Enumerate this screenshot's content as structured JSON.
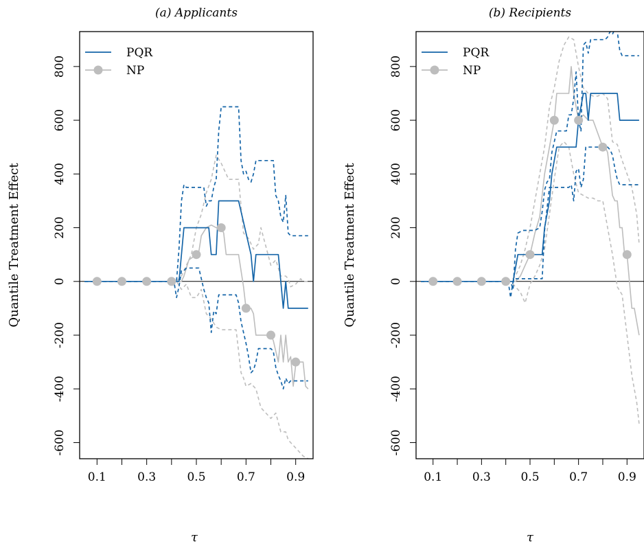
{
  "colors": {
    "pqr": "#1565a8",
    "np": "#bdbdbd",
    "frame": "#000000"
  },
  "chart_data": [
    {
      "type": "line",
      "title": "(a) Applicants",
      "xlabel": "τ",
      "ylabel": "Quantile Treatment Effect",
      "xlim": [
        0.03,
        0.97
      ],
      "ylim": [
        -660,
        930
      ],
      "xticks": [
        0.1,
        0.2,
        0.3,
        0.4,
        0.5,
        0.6,
        0.7,
        0.8,
        0.9
      ],
      "xtick_labels": [
        "0.1",
        "",
        "0.3",
        "",
        "0.5",
        "",
        "0.7",
        "",
        "0.9"
      ],
      "yticks": [
        -600,
        -400,
        -200,
        0,
        200,
        400,
        600,
        800
      ],
      "ytick_labels": [
        "-600",
        "-400",
        "-200",
        "0",
        "200",
        "400",
        "600",
        "800"
      ],
      "legend": {
        "position": "top-left",
        "entries": [
          "PQR",
          "NP"
        ]
      },
      "series": [
        {
          "name": "PQR",
          "style": "solid",
          "x": [
            0.05,
            0.43,
            0.44,
            0.45,
            0.5,
            0.51,
            0.55,
            0.56,
            0.58,
            0.59,
            0.66,
            0.67,
            0.72,
            0.73,
            0.74,
            0.75,
            0.82,
            0.83,
            0.84,
            0.85,
            0.86,
            0.87,
            0.95
          ],
          "y": [
            0,
            0,
            100,
            200,
            200,
            200,
            200,
            100,
            100,
            300,
            300,
            300,
            100,
            0,
            100,
            100,
            100,
            100,
            0,
            -100,
            0,
            -100,
            -100
          ]
        },
        {
          "name": "PQR upper",
          "style": "dashed",
          "x": [
            0.05,
            0.42,
            0.43,
            0.44,
            0.45,
            0.46,
            0.47,
            0.49,
            0.5,
            0.51,
            0.53,
            0.54,
            0.55,
            0.56,
            0.57,
            0.58,
            0.59,
            0.6,
            0.61,
            0.67,
            0.68,
            0.69,
            0.7,
            0.71,
            0.72,
            0.73,
            0.74,
            0.8,
            0.81,
            0.82,
            0.83,
            0.84,
            0.85,
            0.86,
            0.87,
            0.88,
            0.95
          ],
          "y": [
            0,
            0,
            120,
            300,
            360,
            350,
            350,
            350,
            350,
            350,
            350,
            280,
            300,
            300,
            350,
            380,
            560,
            650,
            650,
            650,
            450,
            400,
            410,
            380,
            370,
            400,
            450,
            450,
            450,
            320,
            300,
            240,
            220,
            320,
            180,
            170,
            170
          ]
        },
        {
          "name": "PQR lower",
          "style": "dashed",
          "x": [
            0.05,
            0.41,
            0.42,
            0.43,
            0.44,
            0.45,
            0.46,
            0.47,
            0.49,
            0.5,
            0.51,
            0.53,
            0.54,
            0.55,
            0.56,
            0.57,
            0.58,
            0.59,
            0.6,
            0.61,
            0.66,
            0.67,
            0.68,
            0.7,
            0.71,
            0.72,
            0.73,
            0.74,
            0.75,
            0.8,
            0.81,
            0.82,
            0.83,
            0.84,
            0.85,
            0.86,
            0.87,
            0.88,
            0.95
          ],
          "y": [
            0,
            0,
            -60,
            -20,
            40,
            40,
            50,
            50,
            50,
            50,
            50,
            -30,
            -60,
            -80,
            -190,
            -110,
            -120,
            -50,
            -50,
            -50,
            -50,
            -80,
            -150,
            -230,
            -280,
            -340,
            -330,
            -300,
            -250,
            -250,
            -260,
            -320,
            -350,
            -370,
            -400,
            -360,
            -380,
            -370,
            -370
          ]
        },
        {
          "name": "NP",
          "style": "solid",
          "x": [
            0.05,
            0.44,
            0.45,
            0.47,
            0.5,
            0.51,
            0.52,
            0.54,
            0.56,
            0.58,
            0.6,
            0.61,
            0.62,
            0.67,
            0.68,
            0.69,
            0.7,
            0.72,
            0.73,
            0.74,
            0.75,
            0.76,
            0.77,
            0.8,
            0.81,
            0.82,
            0.83,
            0.84,
            0.85,
            0.86,
            0.87,
            0.88,
            0.89,
            0.9,
            0.91,
            0.92,
            0.93,
            0.94,
            0.95
          ],
          "y": [
            0,
            0,
            20,
            80,
            100,
            110,
            170,
            200,
            210,
            200,
            200,
            180,
            100,
            100,
            40,
            -20,
            -100,
            -100,
            -120,
            -200,
            -200,
            -200,
            -200,
            -200,
            -220,
            -260,
            -300,
            -200,
            -300,
            -200,
            -300,
            -280,
            -390,
            -310,
            -300,
            -300,
            -300,
            -390,
            -400
          ]
        },
        {
          "name": "NP upper",
          "style": "dashed",
          "x": [
            0.05,
            0.42,
            0.44,
            0.46,
            0.48,
            0.5,
            0.52,
            0.54,
            0.56,
            0.58,
            0.6,
            0.62,
            0.63,
            0.65,
            0.67,
            0.69,
            0.71,
            0.73,
            0.75,
            0.76,
            0.78,
            0.8,
            0.82,
            0.84,
            0.86,
            0.87,
            0.88,
            0.9,
            0.92,
            0.93,
            0.95
          ],
          "y": [
            0,
            0,
            20,
            60,
            100,
            200,
            250,
            330,
            380,
            470,
            440,
            400,
            380,
            380,
            380,
            180,
            160,
            120,
            140,
            200,
            130,
            60,
            80,
            20,
            20,
            10,
            -20,
            -10,
            10,
            0,
            0
          ]
        },
        {
          "name": "NP lower",
          "style": "dashed",
          "x": [
            0.05,
            0.42,
            0.44,
            0.46,
            0.48,
            0.5,
            0.52,
            0.54,
            0.56,
            0.58,
            0.6,
            0.62,
            0.64,
            0.66,
            0.68,
            0.69,
            0.7,
            0.72,
            0.74,
            0.76,
            0.78,
            0.8,
            0.82,
            0.84,
            0.86,
            0.87,
            0.88,
            0.9,
            0.92,
            0.93,
            0.95
          ],
          "y": [
            0,
            0,
            -30,
            -10,
            -60,
            -60,
            -30,
            -120,
            -140,
            -170,
            -180,
            -180,
            -180,
            -180,
            -340,
            -360,
            -390,
            -380,
            -400,
            -470,
            -490,
            -510,
            -490,
            -560,
            -560,
            -590,
            -600,
            -620,
            -640,
            -650,
            -660
          ]
        }
      ],
      "markers": [
        {
          "series": "PQR",
          "x": [
            0.1,
            0.2,
            0.3,
            0.4
          ],
          "y": [
            0,
            0,
            0,
            0
          ]
        },
        {
          "series": "NP",
          "x": [
            0.5,
            0.6,
            0.7,
            0.8,
            0.9
          ],
          "y": [
            100,
            200,
            -100,
            -200,
            -300
          ]
        }
      ]
    },
    {
      "type": "line",
      "title": "(b) Recipients",
      "xlabel": "τ",
      "ylabel": "Quantile Treatment Effect",
      "xlim": [
        0.03,
        0.97
      ],
      "ylim": [
        -660,
        930
      ],
      "xticks": [
        0.1,
        0.2,
        0.3,
        0.4,
        0.5,
        0.6,
        0.7,
        0.8,
        0.9
      ],
      "xtick_labels": [
        "0.1",
        "",
        "0.3",
        "",
        "0.5",
        "",
        "0.7",
        "",
        "0.9"
      ],
      "yticks": [
        -600,
        -400,
        -200,
        0,
        200,
        400,
        600,
        800
      ],
      "ytick_labels": [
        "-600",
        "-400",
        "-200",
        "0",
        "200",
        "400",
        "600",
        "800"
      ],
      "legend": {
        "position": "top-left",
        "entries": [
          "PQR",
          "NP"
        ]
      },
      "series": [
        {
          "name": "PQR",
          "style": "solid",
          "x": [
            0.05,
            0.43,
            0.44,
            0.45,
            0.55,
            0.56,
            0.58,
            0.59,
            0.6,
            0.61,
            0.69,
            0.7,
            0.72,
            0.73,
            0.74,
            0.75,
            0.86,
            0.87,
            0.95
          ],
          "y": [
            0,
            0,
            50,
            100,
            100,
            200,
            300,
            400,
            450,
            500,
            500,
            600,
            700,
            700,
            600,
            700,
            700,
            600,
            600
          ]
        },
        {
          "name": "PQR upper",
          "style": "dashed",
          "x": [
            0.05,
            0.42,
            0.43,
            0.44,
            0.45,
            0.47,
            0.5,
            0.52,
            0.54,
            0.55,
            0.56,
            0.57,
            0.58,
            0.59,
            0.61,
            0.65,
            0.66,
            0.67,
            0.68,
            0.69,
            0.7,
            0.71,
            0.72,
            0.73,
            0.74,
            0.75,
            0.77,
            0.81,
            0.82,
            0.83,
            0.84,
            0.85,
            0.86,
            0.87,
            0.88,
            0.95
          ],
          "y": [
            0,
            0,
            -30,
            120,
            180,
            190,
            190,
            190,
            200,
            260,
            340,
            370,
            380,
            480,
            560,
            560,
            620,
            620,
            680,
            780,
            600,
            560,
            880,
            890,
            850,
            900,
            900,
            900,
            910,
            930,
            920,
            940,
            930,
            860,
            840,
            840
          ]
        },
        {
          "name": "PQR lower",
          "style": "dashed",
          "x": [
            0.05,
            0.41,
            0.42,
            0.43,
            0.44,
            0.45,
            0.5,
            0.53,
            0.54,
            0.55,
            0.56,
            0.57,
            0.58,
            0.6,
            0.66,
            0.67,
            0.68,
            0.69,
            0.7,
            0.71,
            0.72,
            0.73,
            0.74,
            0.75,
            0.81,
            0.82,
            0.83,
            0.84,
            0.85,
            0.86,
            0.87,
            0.95
          ],
          "y": [
            0,
            0,
            -60,
            0,
            10,
            10,
            10,
            10,
            10,
            10,
            190,
            270,
            350,
            350,
            350,
            360,
            300,
            410,
            420,
            350,
            380,
            500,
            500,
            500,
            500,
            500,
            490,
            470,
            420,
            380,
            360,
            360
          ]
        },
        {
          "name": "NP",
          "style": "solid",
          "x": [
            0.05,
            0.44,
            0.46,
            0.48,
            0.5,
            0.52,
            0.54,
            0.56,
            0.58,
            0.6,
            0.61,
            0.62,
            0.66,
            0.67,
            0.68,
            0.7,
            0.72,
            0.73,
            0.74,
            0.76,
            0.78,
            0.8,
            0.81,
            0.82,
            0.83,
            0.84,
            0.85,
            0.86,
            0.87,
            0.88,
            0.89,
            0.9,
            0.91,
            0.92,
            0.93,
            0.94,
            0.95
          ],
          "y": [
            0,
            0,
            20,
            60,
            100,
            180,
            240,
            400,
            500,
            600,
            700,
            700,
            700,
            800,
            700,
            600,
            620,
            610,
            600,
            600,
            550,
            500,
            500,
            480,
            400,
            320,
            300,
            300,
            200,
            200,
            100,
            100,
            0,
            -100,
            -100,
            -150,
            -200
          ]
        },
        {
          "name": "NP upper",
          "style": "dashed",
          "x": [
            0.05,
            0.42,
            0.44,
            0.46,
            0.48,
            0.5,
            0.52,
            0.54,
            0.56,
            0.58,
            0.6,
            0.62,
            0.64,
            0.66,
            0.68,
            0.7,
            0.72,
            0.74,
            0.76,
            0.78,
            0.8,
            0.82,
            0.84,
            0.86,
            0.88,
            0.9,
            0.92,
            0.94,
            0.95
          ],
          "y": [
            0,
            0,
            20,
            60,
            120,
            200,
            300,
            400,
            500,
            650,
            720,
            820,
            880,
            910,
            900,
            800,
            720,
            700,
            690,
            690,
            700,
            680,
            520,
            510,
            450,
            400,
            350,
            250,
            140
          ]
        },
        {
          "name": "NP lower",
          "style": "dashed",
          "x": [
            0.05,
            0.42,
            0.44,
            0.46,
            0.48,
            0.5,
            0.52,
            0.54,
            0.56,
            0.58,
            0.6,
            0.62,
            0.64,
            0.66,
            0.68,
            0.7,
            0.72,
            0.74,
            0.76,
            0.78,
            0.8,
            0.82,
            0.84,
            0.86,
            0.88,
            0.9,
            0.92,
            0.94,
            0.95
          ],
          "y": [
            0,
            0,
            -20,
            -40,
            -80,
            -10,
            20,
            60,
            120,
            250,
            380,
            500,
            520,
            500,
            400,
            330,
            320,
            310,
            310,
            300,
            300,
            200,
            100,
            -20,
            -50,
            -200,
            -350,
            -450,
            -530
          ]
        }
      ],
      "markers": [
        {
          "series": "PQR",
          "x": [
            0.1,
            0.2,
            0.3,
            0.4
          ],
          "y": [
            0,
            0,
            0,
            0
          ]
        },
        {
          "series": "NP",
          "x": [
            0.5,
            0.6,
            0.7,
            0.8,
            0.9
          ],
          "y": [
            100,
            600,
            600,
            500,
            100
          ]
        }
      ]
    }
  ]
}
